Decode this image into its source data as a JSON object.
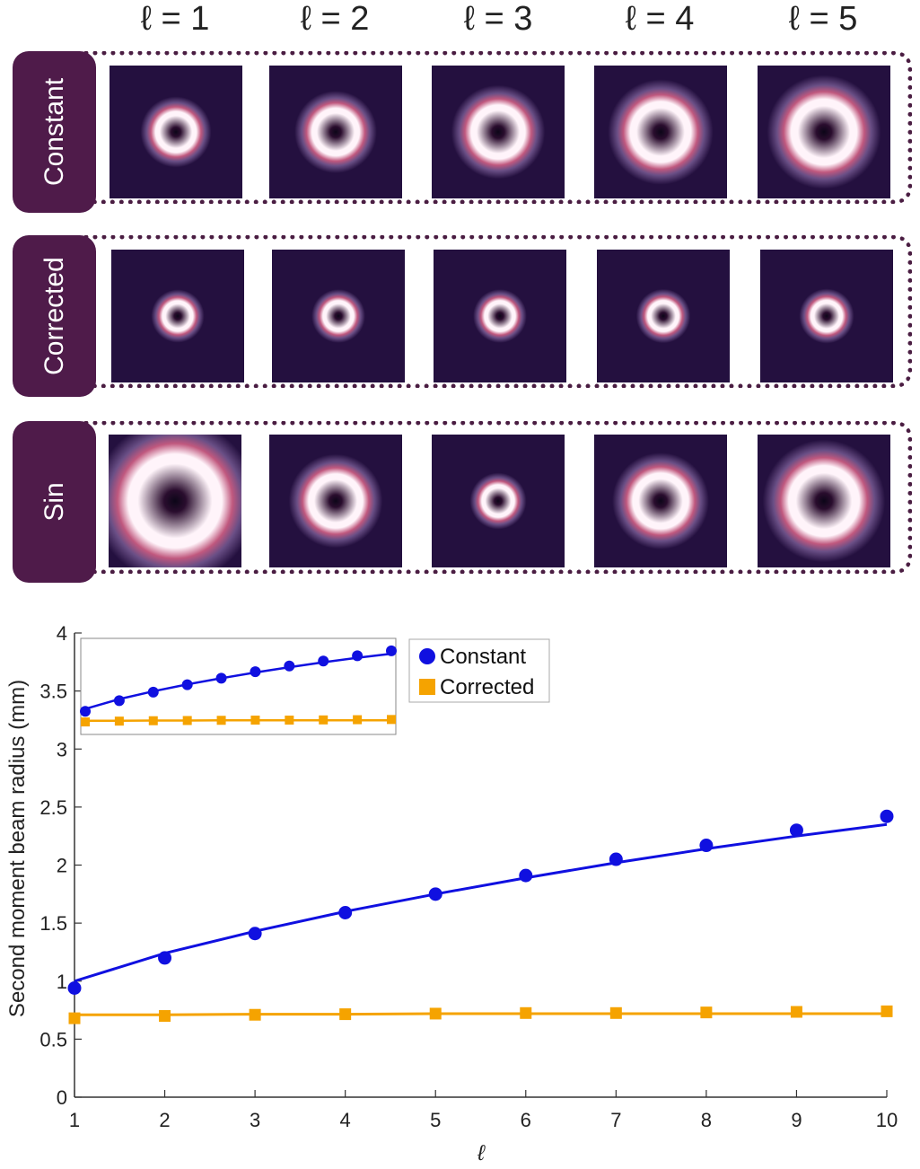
{
  "column_labels": [
    "ℓ = 1",
    "ℓ = 2",
    "ℓ = 3",
    "ℓ = 4",
    "ℓ = 5"
  ],
  "rows": [
    {
      "label": "Constant",
      "ring_radius": [
        1.0,
        1.2,
        1.4,
        1.6,
        1.75
      ]
    },
    {
      "label": "Corrected",
      "ring_radius": [
        0.69,
        0.7,
        0.7,
        0.71,
        0.72
      ]
    },
    {
      "label": "Sin",
      "ring_radius": [
        2.6,
        1.4,
        0.75,
        1.45,
        1.9
      ]
    }
  ],
  "colors": {
    "row_tab": "#4f1b4a",
    "frame": "#4a1d42",
    "tile_bg": "#24103f",
    "ring_outer": "#c0587e",
    "ring_core": "#fff4fa",
    "constant": "#1010e0",
    "corrected": "#f5a300"
  },
  "chart_data": {
    "type": "scatter",
    "xlabel": "ℓ",
    "ylabel": "Second moment beam radius (mm)",
    "xlim": [
      1,
      10
    ],
    "ylim": [
      0,
      4
    ],
    "xticks": [
      1,
      2,
      3,
      4,
      5,
      6,
      7,
      8,
      9,
      10
    ],
    "yticks": [
      0,
      0.5,
      1,
      1.5,
      2,
      2.5,
      3,
      3.5,
      4
    ],
    "grid": false,
    "legend_position": "top-right",
    "series": [
      {
        "name": "Constant",
        "marker": "circle",
        "color": "#1010e0",
        "x": [
          1,
          2,
          3,
          4,
          5,
          6,
          7,
          8,
          9,
          10
        ],
        "y": [
          0.94,
          1.2,
          1.41,
          1.59,
          1.75,
          1.91,
          2.05,
          2.17,
          2.3,
          2.42
        ],
        "fit_y": [
          1.0,
          1.24,
          1.43,
          1.6,
          1.75,
          1.89,
          2.02,
          2.14,
          2.25,
          2.35
        ]
      },
      {
        "name": "Corrected",
        "marker": "square",
        "color": "#f5a300",
        "x": [
          1,
          2,
          3,
          4,
          5,
          6,
          7,
          8,
          9,
          10
        ],
        "y": [
          0.68,
          0.7,
          0.71,
          0.715,
          0.72,
          0.725,
          0.725,
          0.73,
          0.735,
          0.74
        ],
        "fit_y": [
          0.71,
          0.71,
          0.715,
          0.715,
          0.72,
          0.72,
          0.72,
          0.72,
          0.72,
          0.72
        ]
      }
    ]
  }
}
